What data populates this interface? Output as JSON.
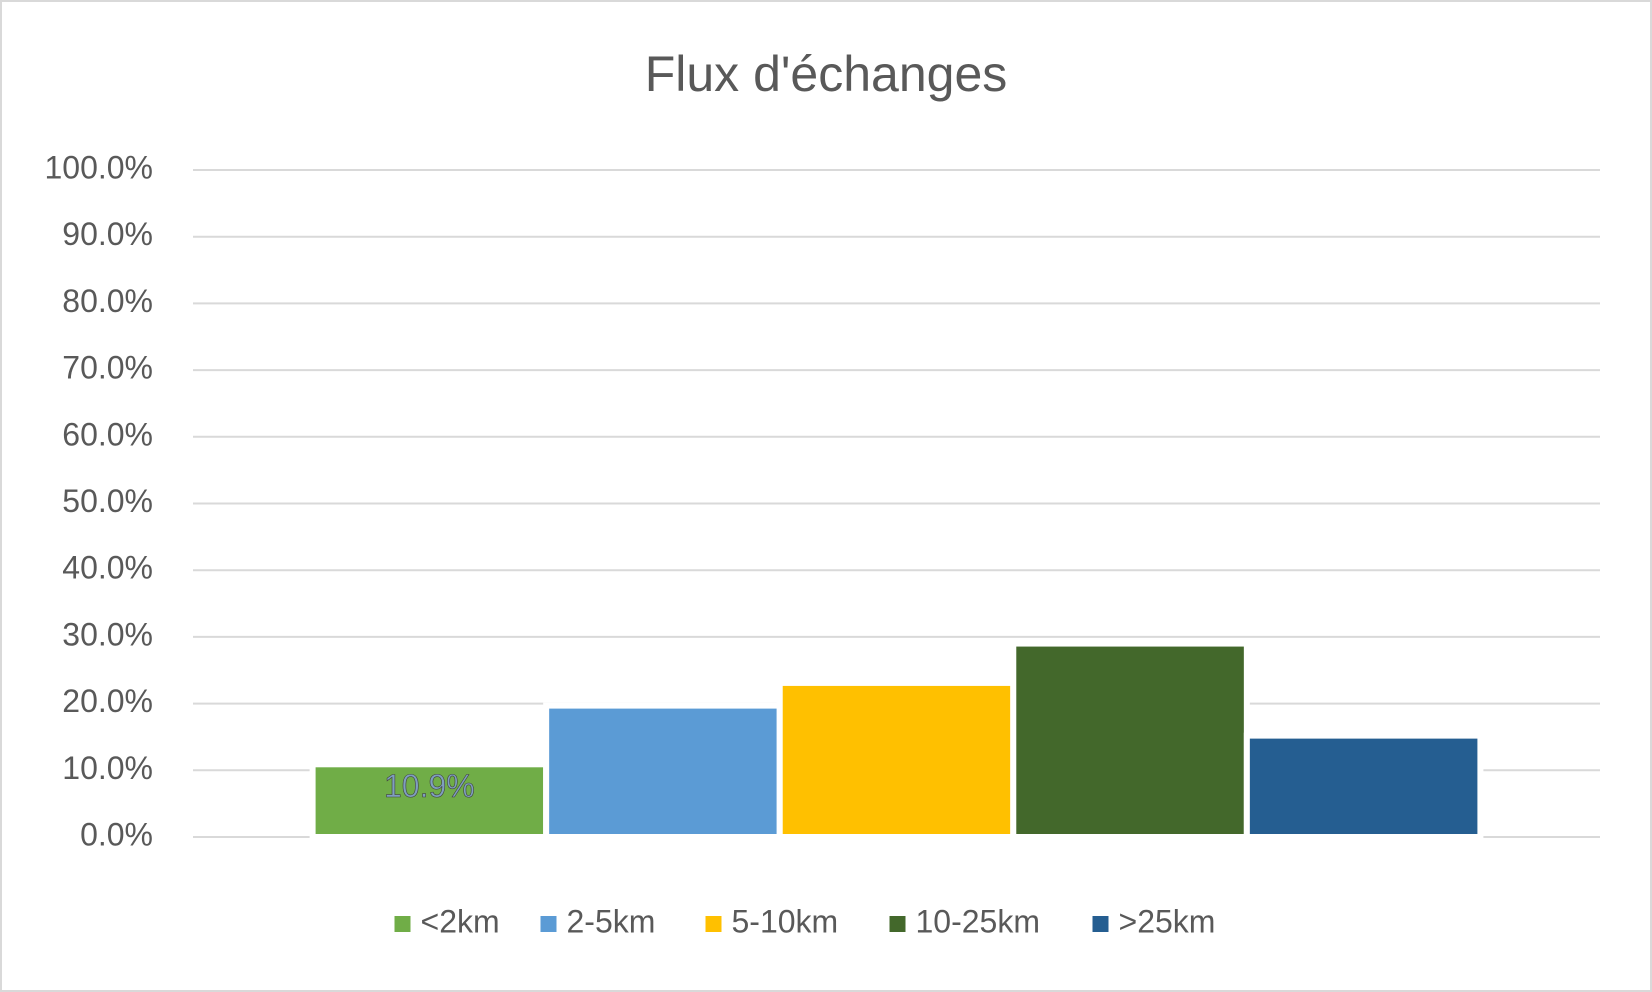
{
  "chart_data": {
    "type": "bar",
    "title": "Flux d'échanges",
    "categories": [
      null
    ],
    "series": [
      {
        "name": "<2km",
        "color": "#70ad47",
        "values": [
          10.9
        ],
        "value_labels": [
          "10.9%"
        ]
      },
      {
        "name": "2-5km",
        "color": "#5b9bd5",
        "values": [
          19.7
        ]
      },
      {
        "name": "5-10km",
        "color": "#ffc000",
        "values": [
          23.1
        ]
      },
      {
        "name": "10-25km",
        "color": "#43682b",
        "values": [
          29.0
        ]
      },
      {
        "name": ">25km",
        "color": "#255e91",
        "values": [
          15.2
        ]
      }
    ],
    "ylim": [
      0,
      100
    ],
    "yticks": [
      {
        "value": 0,
        "label": "0.0%"
      },
      {
        "value": 10,
        "label": "10.0%"
      },
      {
        "value": 20,
        "label": "20.0%"
      },
      {
        "value": 30,
        "label": "30.0%"
      },
      {
        "value": 40,
        "label": "40.0%"
      },
      {
        "value": 50,
        "label": "50.0%"
      },
      {
        "value": 60,
        "label": "60.0%"
      },
      {
        "value": 70,
        "label": "70.0%"
      },
      {
        "value": 80,
        "label": "80.0%"
      },
      {
        "value": 90,
        "label": "90.0%"
      },
      {
        "value": 100,
        "label": "100.0%"
      }
    ],
    "grid": true,
    "legend": "bottom"
  }
}
